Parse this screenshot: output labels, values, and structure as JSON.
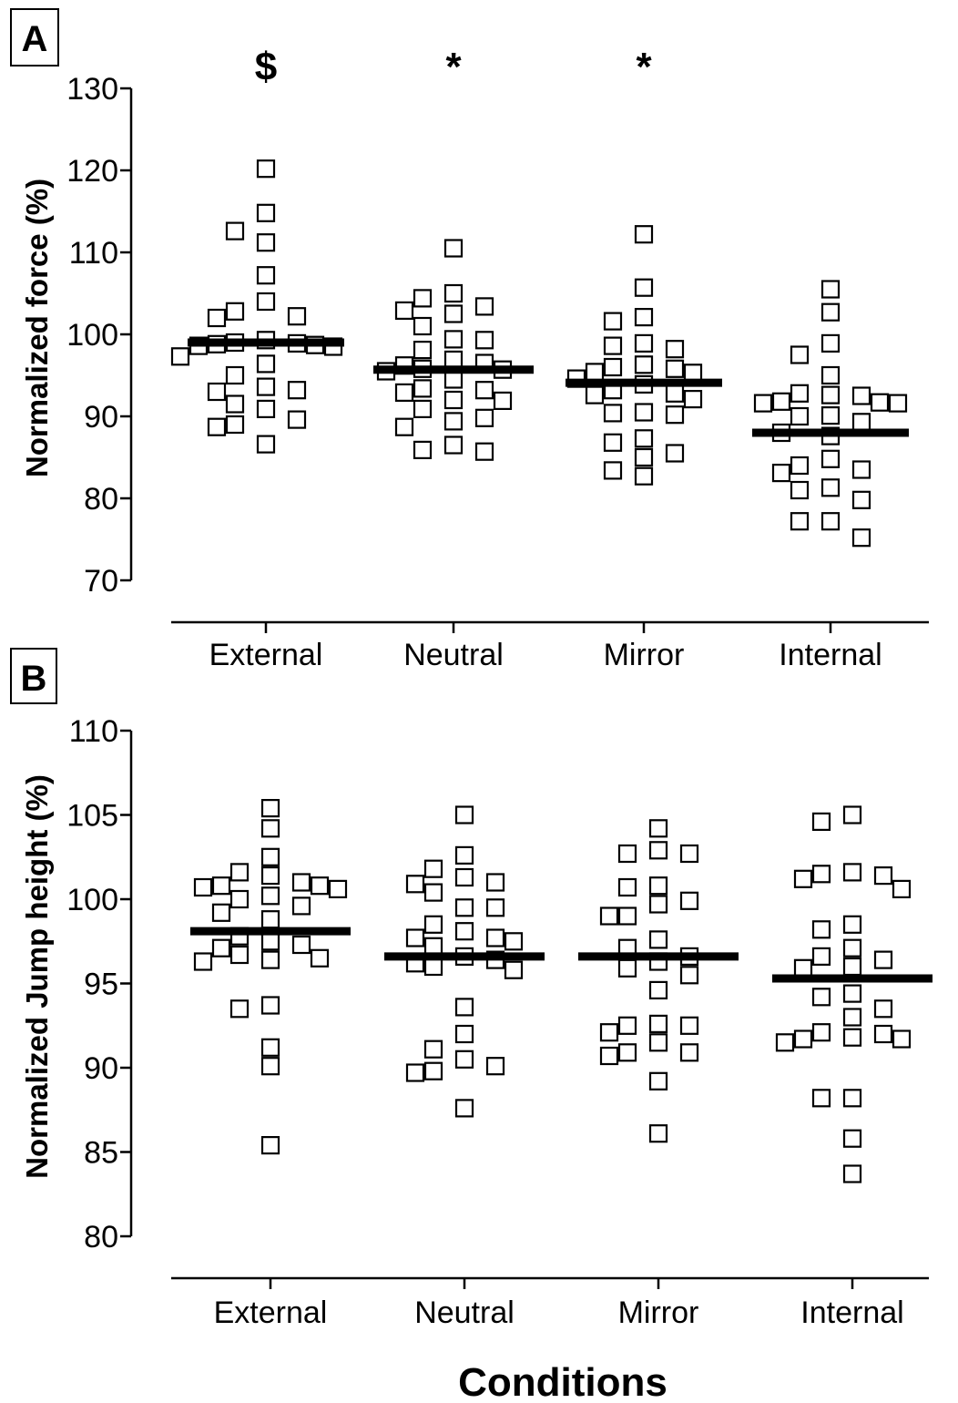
{
  "chart_data": [
    {
      "type": "scatter",
      "panel": "A",
      "title": "",
      "xlabel": "",
      "ylabel": "Normalized force (%)",
      "ylim": [
        70,
        130
      ],
      "yticks": [
        "70",
        "80",
        "90",
        "100",
        "110",
        "120",
        "130"
      ],
      "categories": [
        "External",
        "Neutral",
        "Mirror",
        "Internal"
      ],
      "significance": [
        "$",
        "*",
        "*",
        ""
      ],
      "means": [
        99.0,
        95.7,
        94.1,
        88.0
      ],
      "series": [
        {
          "values": [
            120.2,
            114.8,
            112.6,
            111.2,
            107.2,
            104.0,
            102.8,
            102.2,
            102.0,
            99.3,
            99.0,
            98.9,
            98.8,
            98.7,
            98.6,
            98.5,
            97.3,
            96.4,
            95.0,
            93.6,
            93.2,
            93.0,
            91.5,
            90.9,
            89.6,
            89.0,
            88.7,
            86.6
          ]
        },
        {
          "values": [
            110.5,
            105.0,
            104.4,
            103.4,
            102.9,
            102.5,
            101.0,
            99.4,
            99.3,
            98.1,
            96.9,
            96.5,
            96.2,
            95.8,
            95.7,
            95.5,
            94.5,
            93.4,
            93.2,
            92.9,
            92.0,
            91.9,
            90.9,
            89.8,
            89.4,
            88.7,
            86.5,
            85.9,
            85.7
          ]
        },
        {
          "values": [
            112.2,
            105.7,
            102.1,
            101.6,
            98.9,
            98.6,
            98.2,
            96.3,
            96.0,
            95.8,
            95.4,
            95.3,
            94.6,
            93.9,
            93.2,
            92.8,
            92.6,
            92.1,
            90.5,
            90.4,
            90.2,
            87.3,
            86.8,
            85.5,
            85.0,
            83.4,
            82.7
          ]
        },
        {
          "values": [
            105.5,
            102.7,
            98.9,
            97.5,
            95.0,
            92.8,
            92.6,
            92.5,
            91.8,
            91.7,
            91.6,
            91.6,
            90.1,
            90.0,
            89.3,
            88.0,
            87.6,
            84.8,
            84.0,
            83.5,
            83.1,
            81.3,
            81.0,
            79.8,
            77.2,
            77.2,
            75.2
          ]
        }
      ]
    },
    {
      "type": "scatter",
      "panel": "B",
      "title": "",
      "xlabel": "Conditions",
      "ylabel": "Normalized Jump height (%)",
      "ylim": [
        80,
        110
      ],
      "yticks": [
        "80",
        "85",
        "90",
        "95",
        "100",
        "105",
        "110"
      ],
      "categories": [
        "External",
        "Neutral",
        "Mirror",
        "Internal"
      ],
      "means": [
        98.1,
        96.6,
        96.6,
        95.3
      ],
      "series": [
        {
          "values": [
            105.4,
            104.2,
            102.5,
            101.6,
            101.4,
            101.0,
            100.8,
            100.8,
            100.7,
            100.6,
            100.2,
            100.0,
            99.6,
            99.2,
            98.8,
            97.8,
            97.5,
            97.3,
            97.1,
            96.7,
            96.5,
            96.4,
            96.3,
            93.7,
            93.5,
            91.2,
            90.1,
            85.4
          ]
        },
        {
          "values": [
            105.0,
            102.6,
            101.8,
            101.3,
            101.0,
            100.9,
            100.4,
            99.5,
            99.5,
            98.5,
            98.1,
            97.7,
            97.7,
            97.5,
            97.2,
            96.6,
            96.4,
            96.2,
            96.0,
            95.8,
            93.6,
            92.0,
            91.1,
            90.5,
            90.1,
            89.8,
            89.7,
            87.6
          ]
        },
        {
          "values": [
            104.2,
            102.9,
            102.7,
            102.7,
            100.8,
            100.7,
            99.9,
            99.7,
            99.0,
            99.0,
            97.6,
            97.1,
            96.6,
            96.3,
            95.9,
            95.5,
            94.6,
            92.6,
            92.5,
            92.5,
            92.1,
            91.5,
            90.9,
            90.9,
            90.7,
            89.2,
            86.1
          ]
        },
        {
          "values": [
            105.0,
            104.6,
            101.6,
            101.5,
            101.4,
            101.2,
            100.6,
            98.5,
            98.2,
            97.1,
            96.6,
            96.4,
            96.0,
            95.9,
            94.4,
            94.2,
            93.5,
            93.0,
            92.1,
            92.0,
            91.8,
            91.7,
            91.7,
            91.5,
            88.2,
            88.2,
            85.8,
            83.7
          ]
        }
      ]
    }
  ]
}
